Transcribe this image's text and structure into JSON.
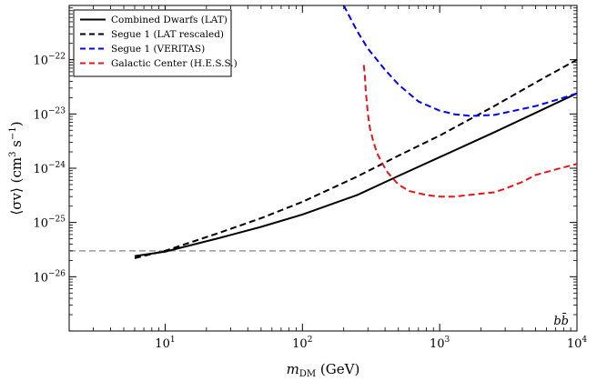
{
  "chart_data": {
    "type": "line",
    "title": "",
    "xlabel_main": "m",
    "xlabel_sub": "DM",
    "xlabel_unit": " (GeV)",
    "ylabel_main": "⟨σv⟩ (cm",
    "ylabel_sup1": "3",
    "ylabel_mid": " s",
    "ylabel_sup2": "−1",
    "ylabel_end": ")",
    "xscale": "log",
    "yscale": "log",
    "xlim": [
      2,
      10000
    ],
    "ylim": [
      1e-27,
      1e-21
    ],
    "x_ticks": [
      {
        "value": 10,
        "base": "10",
        "exp": "1"
      },
      {
        "value": 100,
        "base": "10",
        "exp": "2"
      },
      {
        "value": 1000,
        "base": "10",
        "exp": "3"
      },
      {
        "value": 10000,
        "base": "10",
        "exp": "4"
      }
    ],
    "y_ticks": [
      {
        "value": 1e-26,
        "base": "10",
        "exp": "−26"
      },
      {
        "value": 1e-25,
        "base": "10",
        "exp": "−25"
      },
      {
        "value": 1e-24,
        "base": "10",
        "exp": "−24"
      },
      {
        "value": 1e-23,
        "base": "10",
        "exp": "−23"
      },
      {
        "value": 1e-22,
        "base": "10",
        "exp": "−22"
      }
    ],
    "annotation": "bb̄",
    "legend_position": "top-left",
    "reference_line": {
      "y": 3e-26,
      "color": "#999999",
      "style": "dashed"
    },
    "series": [
      {
        "name": "Combined Dwarfs (LAT)",
        "color": "#000000",
        "style": "solid",
        "x": [
          6,
          10,
          25,
          50,
          100,
          250,
          500,
          1000,
          2500,
          5000,
          10000
        ],
        "y": [
          2.4e-26,
          2.9e-26,
          5.2e-26,
          8.3e-26,
          1.4e-25,
          3.2e-25,
          7.2e-25,
          1.6e-24,
          4.6e-24,
          1.05e-23,
          2.4e-23
        ]
      },
      {
        "name": "Segue 1 (LAT rescaled)",
        "color": "#000000",
        "style": "dashed",
        "x": [
          6,
          10,
          25,
          50,
          100,
          250,
          500,
          1000,
          2500,
          5000,
          10000
        ],
        "y": [
          2.2e-26,
          3e-26,
          6.5e-26,
          1.2e-25,
          2.4e-25,
          7e-25,
          1.7e-24,
          4e-24,
          1.4e-23,
          3.8e-23,
          1e-22
        ]
      },
      {
        "name": "Segue 1 (VERITAS)",
        "color": "#0000ff",
        "style": "dashed",
        "x": [
          200,
          250,
          300,
          400,
          500,
          700,
          1000,
          1300,
          1700,
          2500,
          3500,
          5000,
          7000,
          10000
        ],
        "y": [
          1e-21,
          3.4e-22,
          1.6e-22,
          6.5e-23,
          3.5e-23,
          1.7e-23,
          1.15e-23,
          9.8e-24,
          9.2e-24,
          9.6e-24,
          1.15e-23,
          1.4e-23,
          1.8e-23,
          2.4e-23
        ]
      },
      {
        "name": "Galactic Center (H.E.S.S.)",
        "color": "#e8141c",
        "style": "dashed",
        "x": [
          280,
          285,
          290,
          300,
          310,
          330,
          350,
          380,
          420,
          500,
          600,
          800,
          1000,
          1300,
          1600,
          2000,
          2500,
          3000,
          4000,
          5000,
          7000,
          10000
        ],
        "y": [
          8e-23,
          5e-23,
          2.5e-23,
          1e-23,
          5.5e-24,
          3e-24,
          1.9e-24,
          1.25e-24,
          8.2e-25,
          5e-25,
          3.8e-25,
          3.2e-25,
          3e-25,
          3e-25,
          3.2e-25,
          3.4e-25,
          3.6e-25,
          4.2e-25,
          5.6e-25,
          7.5e-25,
          9.5e-25,
          1.2e-24
        ]
      }
    ]
  }
}
